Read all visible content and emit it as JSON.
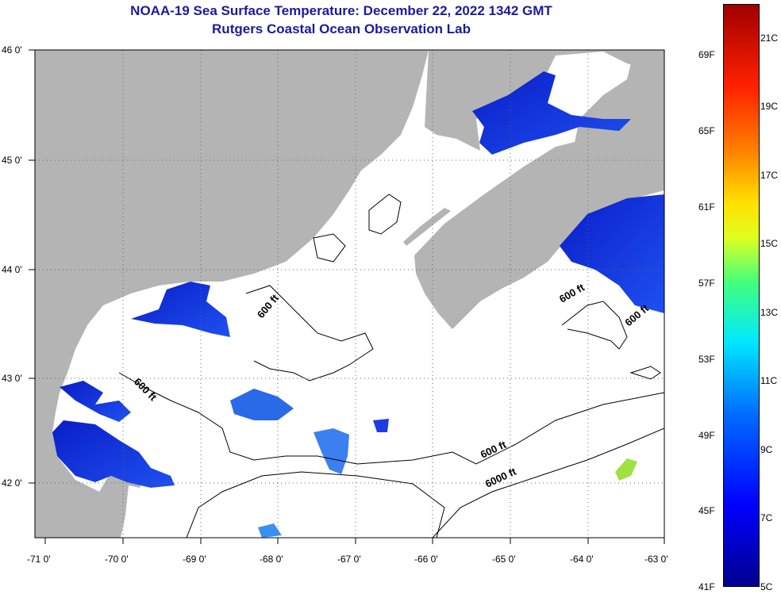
{
  "title": {
    "line1": "NOAA-19 Sea Surface Temperature:  December 22, 2022 1342 GMT",
    "line2": "Rutgers Coastal Ocean Observation Lab"
  },
  "map": {
    "lon_labels": [
      "-71 0'",
      "-70 0'",
      "-69 0'",
      "-68 0'",
      "-67 0'",
      "-66 0'",
      "-65 0'",
      "-64 0'",
      "-63 0'"
    ],
    "lat_labels": [
      "46 0'",
      "45 0'",
      "44 0'",
      "43 0'",
      "42 0'"
    ],
    "contours": [
      "600 ft",
      "600 ft",
      "600 ft",
      "600 ft",
      "600 ft",
      "6000 ft"
    ],
    "colors": {
      "land": "#b4b4b4",
      "ocean": "#ffffff",
      "warm_sst": "#1030e0"
    }
  },
  "colorbar": {
    "f_labels": [
      "69F",
      "65F",
      "61F",
      "57F",
      "53F",
      "49F",
      "45F",
      "41F"
    ],
    "c_labels": [
      "21C",
      "19C",
      "17C",
      "15C",
      "13C",
      "11C",
      "9C",
      "7C",
      "5C"
    ]
  }
}
